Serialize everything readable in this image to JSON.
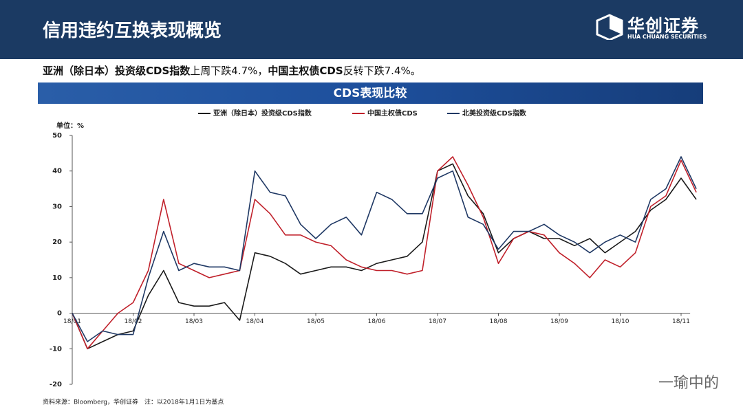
{
  "header": {
    "title": "信用违约互换表现概览",
    "logo_name": "华创证券",
    "logo_sub": "HUA CHUANG SECURITIES"
  },
  "summary": [
    {
      "text": "亚洲（除日本）投资级CDS指数",
      "bold": true
    },
    {
      "text": "上周下跌4.7%，",
      "bold": false
    },
    {
      "text": "中国主权债CDS",
      "bold": true
    },
    {
      "text": "反转下跌7.4%。",
      "bold": false
    }
  ],
  "chart_data": {
    "type": "line",
    "title": "CDS表现比较",
    "unit_label": "单位：%",
    "categories": [
      "18/01",
      null,
      null,
      null,
      "18/02",
      null,
      null,
      null,
      "18/03",
      null,
      null,
      null,
      "18/04",
      null,
      null,
      null,
      "18/05",
      null,
      null,
      null,
      "18/06",
      null,
      null,
      null,
      "18/07",
      null,
      null,
      null,
      "18/08",
      null,
      null,
      null,
      "18/09",
      null,
      null,
      null,
      "18/10",
      null,
      null,
      null,
      "18/11",
      null
    ],
    "series": [
      {
        "name": "亚洲（除日本）投资级CDS指数",
        "color": "#1a1a1a",
        "values": [
          0,
          -10,
          -8,
          -6,
          -5,
          5,
          12,
          3,
          2,
          2,
          3,
          -2,
          17,
          16,
          14,
          11,
          12,
          13,
          13,
          12,
          14,
          15,
          16,
          20,
          40,
          42,
          33,
          28,
          17,
          21,
          23,
          21,
          21,
          19,
          21,
          17,
          20,
          23,
          29,
          32,
          38,
          32
        ]
      },
      {
        "name": "中国主权债CDS",
        "color": "#c0202a",
        "values": [
          0,
          -10,
          -5,
          0,
          3,
          12,
          32,
          14,
          12,
          10,
          11,
          12,
          32,
          28,
          22,
          22,
          20,
          19,
          15,
          13,
          12,
          12,
          11,
          12,
          40,
          44,
          36,
          27,
          14,
          21,
          23,
          22,
          17,
          14,
          10,
          15,
          13,
          17,
          30,
          33,
          43,
          34
        ]
      },
      {
        "name": "北美投资级CDS指数",
        "color": "#1f3864",
        "values": [
          0,
          -8,
          -5,
          -6,
          -6,
          10,
          23,
          12,
          14,
          13,
          13,
          12,
          40,
          34,
          33,
          25,
          21,
          25,
          27,
          22,
          34,
          32,
          28,
          28,
          38,
          40,
          27,
          25,
          18,
          23,
          23,
          25,
          22,
          20,
          17,
          20,
          22,
          20,
          32,
          35,
          44,
          35
        ]
      }
    ],
    "ylim": [
      -20,
      50
    ],
    "yticks": [
      -20,
      -10,
      0,
      10,
      20,
      30,
      40,
      50
    ],
    "grid": false
  },
  "source": "资料来源：Bloomberg，华创证券　注：以2018年1月1日为基点",
  "watermark": "一瑜中的"
}
